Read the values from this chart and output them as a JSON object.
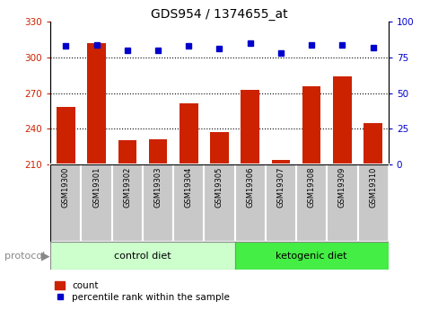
{
  "title": "GDS954 / 1374655_at",
  "samples": [
    "GSM19300",
    "GSM19301",
    "GSM19302",
    "GSM19303",
    "GSM19304",
    "GSM19305",
    "GSM19306",
    "GSM19307",
    "GSM19308",
    "GSM19309",
    "GSM19310"
  ],
  "count_values": [
    258,
    312,
    230,
    231,
    261,
    237,
    273,
    214,
    276,
    284,
    245
  ],
  "percentile_values": [
    83,
    84,
    80,
    80,
    83,
    81,
    85,
    78,
    84,
    84,
    82
  ],
  "ylim_left": [
    210,
    330
  ],
  "ylim_right": [
    0,
    100
  ],
  "yticks_left": [
    210,
    240,
    270,
    300,
    330
  ],
  "yticks_right": [
    0,
    25,
    50,
    75,
    100
  ],
  "group_control_n": 6,
  "group_keto_n": 5,
  "group_control_label": "control diet",
  "group_keto_label": "ketogenic diet",
  "group_control_color": "#ccffcc",
  "group_keto_color": "#44ee44",
  "bar_color": "#cc2200",
  "dot_color": "#0000cc",
  "background_color": "#ffffff",
  "tick_label_color_left": "#cc2200",
  "tick_label_color_right": "#0000cc",
  "protocol_label": "protocol",
  "legend_count_label": "count",
  "legend_percentile_label": "percentile rank within the sample",
  "bar_width": 0.6,
  "sample_box_color": "#c8c8c8",
  "sample_box_edge_color": "#ffffff"
}
